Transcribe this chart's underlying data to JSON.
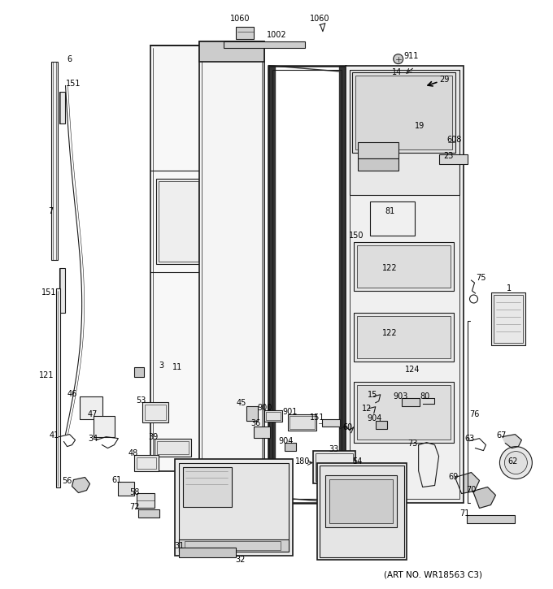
{
  "art_no": "(ART NO. WR18563 C3)",
  "bg_color": "#ffffff",
  "lc": "#1a1a1a",
  "figsize": [
    6.8,
    7.25
  ],
  "dpi": 100
}
